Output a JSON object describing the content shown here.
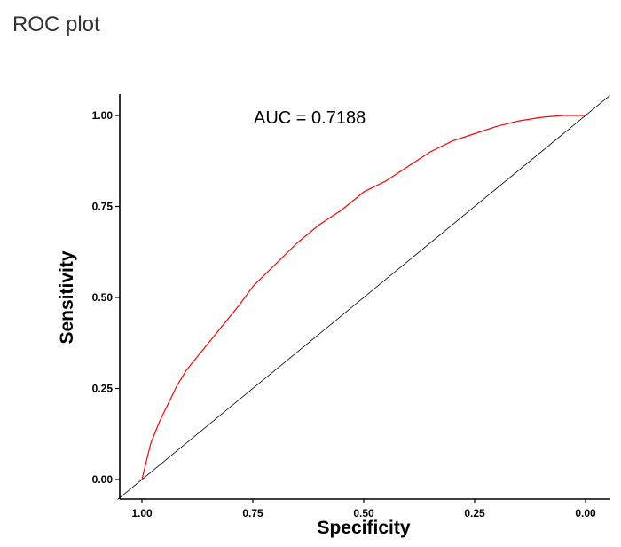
{
  "page": {
    "title": "ROC plot"
  },
  "chart_data": {
    "type": "line",
    "title": "",
    "xlabel": "Specificity",
    "ylabel": "Sensitivity",
    "x_reversed": true,
    "xlim": [
      1.0,
      0.0
    ],
    "ylim": [
      0.0,
      1.0
    ],
    "x_ticks": [
      1.0,
      0.75,
      0.5,
      0.25,
      0.0
    ],
    "x_tick_labels": [
      "1.00",
      "0.75",
      "0.50",
      "0.25",
      "0.00"
    ],
    "y_ticks": [
      0.0,
      0.25,
      0.5,
      0.75,
      1.0
    ],
    "y_tick_labels": [
      "0.00",
      "0.25",
      "0.50",
      "0.75",
      "1.00"
    ],
    "grid": false,
    "annotation": "AUC = 0.7188",
    "colors": {
      "roc_curve": "#ff0000",
      "diagonal": "#000000",
      "axes": "#000000"
    },
    "series": [
      {
        "values": [
          {
            "x": 1.0,
            "y": 0.0
          },
          {
            "x": 0.99,
            "y": 0.05
          },
          {
            "x": 0.98,
            "y": 0.1
          },
          {
            "x": 0.96,
            "y": 0.16
          },
          {
            "x": 0.94,
            "y": 0.21
          },
          {
            "x": 0.92,
            "y": 0.26
          },
          {
            "x": 0.9,
            "y": 0.3
          },
          {
            "x": 0.86,
            "y": 0.36
          },
          {
            "x": 0.82,
            "y": 0.42
          },
          {
            "x": 0.78,
            "y": 0.48
          },
          {
            "x": 0.75,
            "y": 0.53
          },
          {
            "x": 0.7,
            "y": 0.59
          },
          {
            "x": 0.65,
            "y": 0.65
          },
          {
            "x": 0.6,
            "y": 0.7
          },
          {
            "x": 0.55,
            "y": 0.74
          },
          {
            "x": 0.5,
            "y": 0.79
          },
          {
            "x": 0.45,
            "y": 0.82
          },
          {
            "x": 0.4,
            "y": 0.86
          },
          {
            "x": 0.35,
            "y": 0.9
          },
          {
            "x": 0.3,
            "y": 0.93
          },
          {
            "x": 0.25,
            "y": 0.95
          },
          {
            "x": 0.2,
            "y": 0.97
          },
          {
            "x": 0.15,
            "y": 0.985
          },
          {
            "x": 0.1,
            "y": 0.995
          },
          {
            "x": 0.05,
            "y": 1.0
          },
          {
            "x": 0.0,
            "y": 1.0
          }
        ]
      },
      {
        "values": [
          {
            "x": 1.0,
            "y": 0.0
          },
          {
            "x": 0.0,
            "y": 1.0
          }
        ]
      }
    ]
  }
}
